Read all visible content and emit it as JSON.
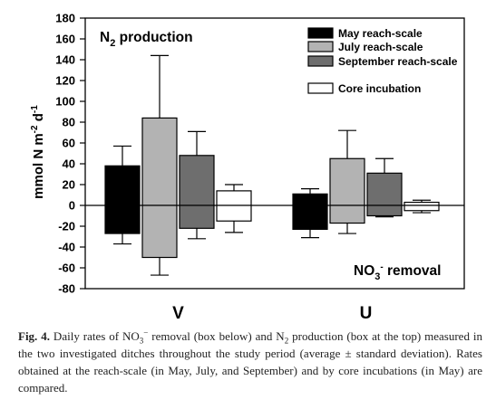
{
  "chart_data": {
    "type": "bar",
    "categories": [
      "V",
      "U"
    ],
    "ylim": [
      -80,
      180
    ],
    "yticks": [
      -80,
      -60,
      -40,
      -20,
      0,
      20,
      40,
      60,
      80,
      100,
      120,
      140,
      160,
      180
    ],
    "ylabel": {
      "base": "mmol N m",
      "sup1": "-2",
      "mid": " d",
      "sup2": "-1"
    },
    "annotations": {
      "production": {
        "pre": "N",
        "sub": "2",
        "post": " production"
      },
      "removal": {
        "pre": "NO",
        "sub": "3",
        "sup": "-",
        "post": " removal"
      }
    },
    "series": [
      {
        "name": "May reach-scale",
        "color": "#000000",
        "production": [
          38,
          11
        ],
        "production_err": [
          57,
          16
        ],
        "removal": [
          -27,
          -23
        ],
        "removal_err": [
          -37,
          -31
        ]
      },
      {
        "name": "July reach-scale",
        "color": "#b3b3b3",
        "production": [
          84,
          45
        ],
        "production_err": [
          144,
          72
        ],
        "removal": [
          -50,
          -17
        ],
        "removal_err": [
          -67,
          -27
        ]
      },
      {
        "name": "September reach-scale",
        "color": "#6e6e6e",
        "production": [
          48,
          31
        ],
        "production_err": [
          71,
          45
        ],
        "removal": [
          -22,
          -10
        ],
        "removal_err": [
          -32,
          -11
        ]
      },
      {
        "name": "Core incubation",
        "color": "#ffffff",
        "production": [
          14,
          3
        ],
        "production_err": [
          20,
          5
        ],
        "removal": [
          -15,
          -5
        ],
        "removal_err": [
          -26,
          -7
        ]
      }
    ]
  },
  "caption": {
    "label": "Fig. 4.",
    "t1": " Daily rates of NO",
    "s1": "3",
    "p1": "−",
    "t2": " removal (box below) and N",
    "s2": "2",
    "t3": " production (box at the top) measured in the two investigated ditches throughout the study period (average ± standard deviation). Rates obtained at the reach-scale (in May, July, and September) and by core incubations (in May) are compared."
  }
}
